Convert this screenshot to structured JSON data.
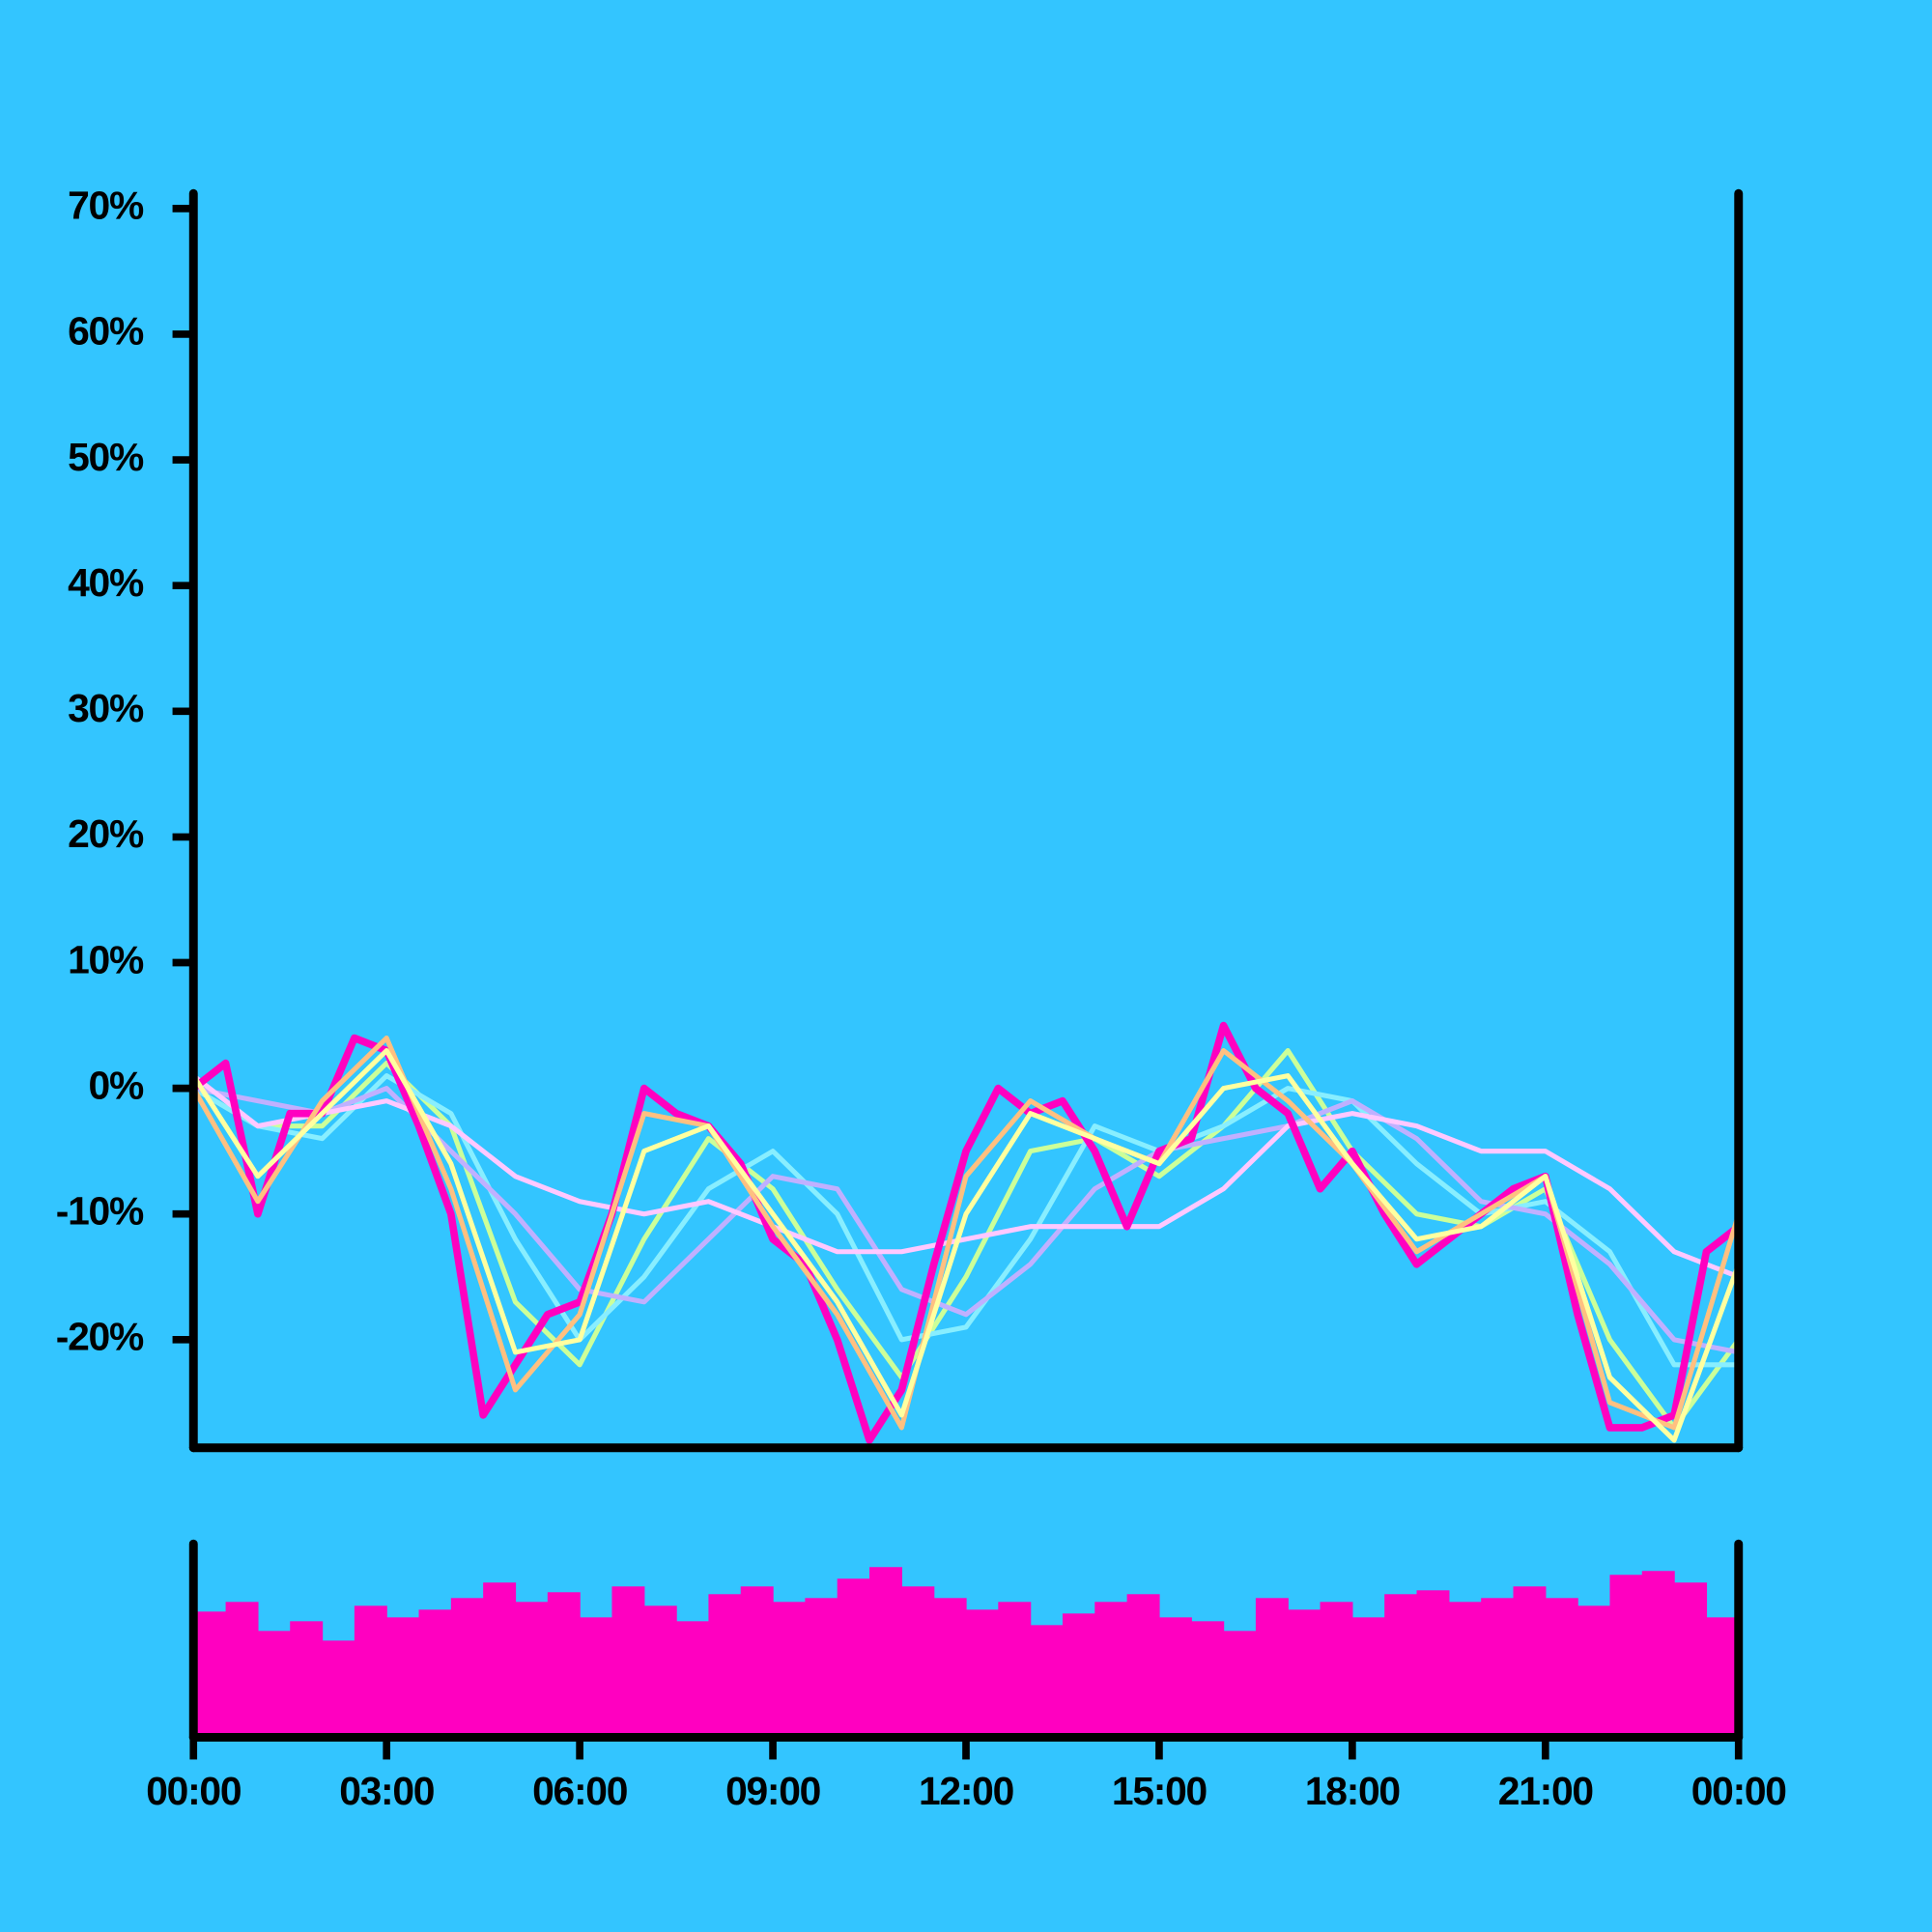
{
  "chart_data": [
    {
      "type": "line",
      "xlim": [
        0,
        24
      ],
      "ylim": [
        -28.6,
        71.2
      ],
      "yticks": [
        {
          "value": 70,
          "label": "70%"
        },
        {
          "value": 60,
          "label": "60%"
        },
        {
          "value": 50,
          "label": "50%"
        },
        {
          "value": 40,
          "label": "40%"
        },
        {
          "value": 30,
          "label": "30%"
        },
        {
          "value": 20,
          "label": "20%"
        },
        {
          "value": 10,
          "label": "10%"
        },
        {
          "value": 0,
          "label": "0%"
        },
        {
          "value": -10,
          "label": "-10%"
        },
        {
          "value": -20,
          "label": "-20%"
        }
      ],
      "series": [
        {
          "color": "#ccff99",
          "x": [
            0,
            1,
            2,
            3,
            4,
            5,
            6,
            7,
            8,
            9,
            10,
            11,
            12,
            13,
            14,
            15,
            16,
            17,
            18,
            19,
            20,
            21,
            22,
            23,
            24
          ],
          "values": [
            0,
            -3,
            -3,
            2,
            -3,
            -17,
            -22,
            -12,
            -4,
            -8,
            -16,
            -23,
            -15,
            -5,
            -4,
            -7,
            -3,
            3,
            -5,
            -10,
            -11,
            -8,
            -20,
            -27,
            -20
          ]
        },
        {
          "color": "#88eeff",
          "x": [
            0,
            1,
            2,
            3,
            4,
            5,
            6,
            7,
            8,
            9,
            10,
            11,
            12,
            13,
            14,
            15,
            16,
            17,
            18,
            19,
            20,
            21,
            22,
            23,
            24
          ],
          "values": [
            0,
            -3,
            -4,
            1,
            -2,
            -12,
            -20,
            -15,
            -8,
            -5,
            -10,
            -20,
            -19,
            -12,
            -3,
            -5,
            -3,
            0,
            -1,
            -6,
            -10,
            -9,
            -13,
            -22,
            -22
          ]
        },
        {
          "color": "#c0b0ff",
          "x": [
            0,
            1,
            2,
            3,
            4,
            5,
            6,
            7,
            8,
            9,
            10,
            11,
            12,
            13,
            14,
            15,
            16,
            17,
            18,
            19,
            20,
            21,
            22,
            23,
            24
          ],
          "values": [
            0,
            -1,
            -2,
            0,
            -5,
            -10,
            -16,
            -17,
            -12,
            -7,
            -8,
            -16,
            -18,
            -14,
            -8,
            -5,
            -4,
            -3,
            -1,
            -4,
            -9,
            -10,
            -14,
            -20,
            -21
          ]
        },
        {
          "color": "#ffc8ff",
          "x": [
            0,
            1,
            2,
            3,
            4,
            5,
            6,
            7,
            8,
            9,
            10,
            11,
            12,
            13,
            14,
            15,
            16,
            17,
            18,
            19,
            20,
            21,
            22,
            23,
            24
          ],
          "values": [
            1,
            -3,
            -2,
            -1,
            -3,
            -7,
            -9,
            -10,
            -9,
            -11,
            -13,
            -13,
            -12,
            -11,
            -11,
            -11,
            -8,
            -3,
            -2,
            -3,
            -5,
            -5,
            -8,
            -13,
            -15
          ]
        },
        {
          "color": "#ff00c0",
          "x": [
            0,
            0.5,
            1,
            1.5,
            2,
            2.5,
            3,
            3.5,
            4,
            4.5,
            5,
            5.5,
            6,
            6.5,
            7,
            7.5,
            8,
            8.5,
            9,
            9.5,
            10,
            10.5,
            11,
            11.5,
            12,
            12.5,
            13,
            13.5,
            14,
            14.5,
            15,
            15.5,
            16,
            16.5,
            17,
            17.5,
            18,
            18.5,
            19,
            19.5,
            20,
            20.5,
            21,
            21.5,
            22,
            22.5,
            23,
            23.5,
            24
          ],
          "values": [
            0,
            2,
            -10,
            -2,
            -2,
            4,
            3,
            -3,
            -10,
            -26,
            -22,
            -18,
            -17,
            -10,
            0,
            -2,
            -3,
            -6,
            -12,
            -14,
            -20,
            -28,
            -24,
            -14,
            -5,
            0,
            -2,
            -1,
            -5,
            -11,
            -5,
            -4,
            5,
            0,
            -2,
            -8,
            -5,
            -10,
            -14,
            -12,
            -10,
            -8,
            -7,
            -18,
            -27,
            -27,
            -26,
            -13,
            -11
          ]
        },
        {
          "color": "#ffc080",
          "x": [
            0,
            1,
            2,
            3,
            4,
            5,
            6,
            7,
            8,
            9,
            10,
            11,
            12,
            13,
            14,
            15,
            16,
            17,
            18,
            19,
            20,
            21,
            22,
            23,
            24
          ],
          "values": [
            0,
            -9,
            -1,
            4,
            -8,
            -24,
            -18,
            -2,
            -3,
            -11,
            -18,
            -27,
            -7,
            -1,
            -4,
            -6,
            3,
            -1,
            -6,
            -13,
            -10,
            -7,
            -25,
            -27,
            -10
          ]
        },
        {
          "color": "#ffffa0",
          "x": [
            0,
            1,
            2,
            3,
            4,
            5,
            6,
            7,
            8,
            9,
            10,
            11,
            12,
            13,
            14,
            15,
            16,
            17,
            18,
            19,
            20,
            21,
            22,
            23,
            24
          ],
          "values": [
            1,
            -7,
            -2,
            3,
            -6,
            -21,
            -20,
            -5,
            -3,
            -10,
            -17,
            -26,
            -10,
            -2,
            -4,
            -6,
            0,
            1,
            -6,
            -12,
            -11,
            -7,
            -23,
            -28,
            -14
          ]
        }
      ]
    },
    {
      "type": "bar",
      "color": "#ff00c0",
      "xlim": [
        0,
        24
      ],
      "ylim": [
        0,
        100
      ],
      "xticks": [
        {
          "value": 0,
          "label": "00:00"
        },
        {
          "value": 3,
          "label": "03:00"
        },
        {
          "value": 6,
          "label": "06:00"
        },
        {
          "value": 9,
          "label": "09:00"
        },
        {
          "value": 12,
          "label": "12:00"
        },
        {
          "value": 15,
          "label": "15:00"
        },
        {
          "value": 18,
          "label": "18:00"
        },
        {
          "value": 21,
          "label": "21:00"
        },
        {
          "value": 24,
          "label": "00:00"
        }
      ],
      "x": [
        0,
        0.5,
        1,
        1.5,
        2,
        2.5,
        3,
        3.5,
        4,
        4.5,
        5,
        5.5,
        6,
        6.5,
        7,
        7.5,
        8,
        8.5,
        9,
        9.5,
        10,
        10.5,
        11,
        11.5,
        12,
        12.5,
        13,
        13.5,
        14,
        14.5,
        15,
        15.5,
        16,
        16.5,
        17,
        17.5,
        18,
        18.5,
        19,
        19.5,
        20,
        20.5,
        21,
        21.5,
        22,
        22.5,
        23,
        23.5
      ],
      "values": [
        65,
        70,
        55,
        60,
        50,
        68,
        62,
        66,
        72,
        80,
        70,
        75,
        62,
        78,
        68,
        60,
        74,
        78,
        70,
        72,
        82,
        88,
        78,
        72,
        66,
        70,
        58,
        64,
        70,
        74,
        62,
        60,
        55,
        72,
        66,
        70,
        62,
        74,
        76,
        70,
        72,
        78,
        72,
        68,
        84,
        86,
        80,
        62
      ]
    }
  ]
}
